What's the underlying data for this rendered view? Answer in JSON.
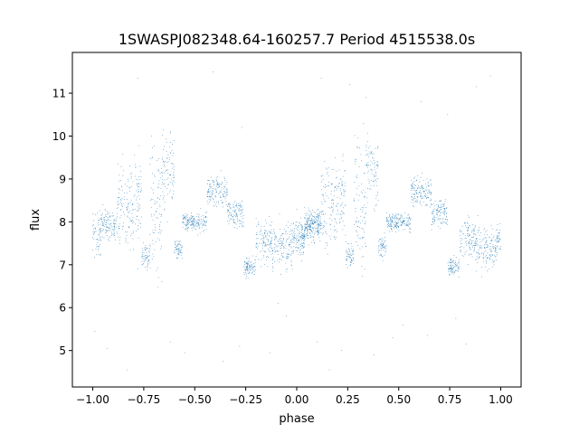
{
  "chart_data": {
    "type": "scatter",
    "title": "1SWASPJ082348.64-160257.7 Period 4515538.0s",
    "xlabel": "phase",
    "ylabel": "flux",
    "xlim": [
      -1.1,
      1.1
    ],
    "ylim": [
      4.15,
      11.95
    ],
    "x_ticks": [
      -1.0,
      -0.75,
      -0.5,
      -0.25,
      0.0,
      0.25,
      0.5,
      0.75,
      1.0
    ],
    "x_tick_labels": [
      "−1.00",
      "−0.75",
      "−0.50",
      "−0.25",
      "0.00",
      "0.25",
      "0.50",
      "0.75",
      "1.00"
    ],
    "y_ticks": [
      5,
      6,
      7,
      8,
      9,
      10,
      11
    ],
    "y_tick_labels": [
      "5",
      "6",
      "7",
      "8",
      "9",
      "10",
      "11"
    ],
    "grid": false,
    "series": [
      {
        "color": "#1f77b4",
        "marker_size": "tiny",
        "phase_symmetric": true,
        "clusters": [
          {
            "x_range": [
              -1.0,
              -0.96
            ],
            "y_center": 7.7,
            "y_spread": 0.9
          },
          {
            "x_range": [
              -0.96,
              -0.88
            ],
            "y_center": 7.95,
            "y_spread": 0.6
          },
          {
            "x_range": [
              -0.88,
              -0.8
            ],
            "y_center": 8.3,
            "y_spread": 1.8
          },
          {
            "x_range": [
              -0.8,
              -0.76
            ],
            "y_center": 8.6,
            "y_spread": 1.5
          },
          {
            "x_range": [
              -0.76,
              -0.72
            ],
            "y_center": 7.2,
            "y_spread": 0.5
          },
          {
            "x_range": [
              -0.72,
              -0.66
            ],
            "y_center": 8.4,
            "y_spread": 2.6
          },
          {
            "x_range": [
              -0.66,
              -0.6
            ],
            "y_center": 9.2,
            "y_spread": 1.6
          },
          {
            "x_range": [
              -0.6,
              -0.56
            ],
            "y_center": 7.4,
            "y_spread": 0.4
          },
          {
            "x_range": [
              -0.56,
              -0.44
            ],
            "y_center": 8.0,
            "y_spread": 0.35
          },
          {
            "x_range": [
              -0.44,
              -0.34
            ],
            "y_center": 8.7,
            "y_spread": 0.6
          },
          {
            "x_range": [
              -0.34,
              -0.26
            ],
            "y_center": 8.2,
            "y_spread": 0.6
          },
          {
            "x_range": [
              -0.26,
              -0.2
            ],
            "y_center": 6.95,
            "y_spread": 0.35
          },
          {
            "x_range": [
              -0.2,
              -0.12
            ],
            "y_center": 7.6,
            "y_spread": 0.9
          },
          {
            "x_range": [
              -0.12,
              -0.02
            ],
            "y_center": 7.4,
            "y_spread": 0.9
          },
          {
            "x_range": [
              -0.02,
              0.04
            ],
            "y_center": 7.6,
            "y_spread": 0.6
          },
          {
            "x_range": [
              0.04,
              0.12
            ],
            "y_center": 7.9,
            "y_spread": 0.6
          }
        ],
        "outliers": [
          [
            -0.99,
            5.45
          ],
          [
            -0.93,
            5.05
          ],
          [
            -0.83,
            4.55
          ],
          [
            -0.78,
            6.9
          ],
          [
            -0.62,
            5.2
          ],
          [
            -0.55,
            4.95
          ],
          [
            -0.36,
            4.75
          ],
          [
            -0.28,
            5.1
          ],
          [
            -0.13,
            4.95
          ],
          [
            -0.09,
            6.1
          ],
          [
            -0.05,
            5.8
          ],
          [
            0.1,
            5.2
          ],
          [
            0.16,
            4.55
          ],
          [
            0.22,
            5.0
          ],
          [
            0.26,
            11.2
          ],
          [
            0.38,
            4.9
          ],
          [
            0.47,
            5.3
          ],
          [
            0.52,
            5.6
          ],
          [
            0.64,
            5.35
          ],
          [
            0.78,
            5.75
          ],
          [
            0.83,
            5.15
          ],
          [
            0.88,
            11.15
          ],
          [
            0.95,
            11.4
          ],
          [
            -0.78,
            11.35
          ],
          [
            -0.41,
            11.5
          ],
          [
            -0.27,
            10.2
          ],
          [
            0.12,
            11.35
          ],
          [
            0.34,
            10.9
          ],
          [
            0.61,
            10.8
          ],
          [
            0.74,
            10.5
          ]
        ]
      }
    ]
  }
}
